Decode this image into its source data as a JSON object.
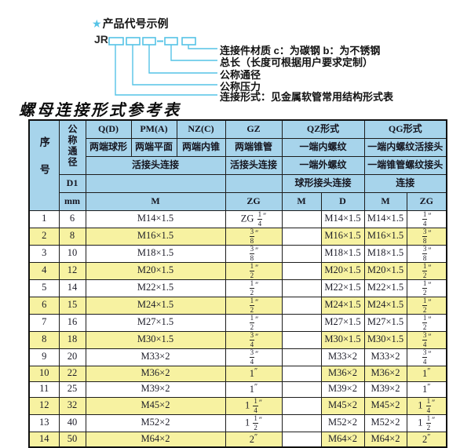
{
  "diagram": {
    "star": "★",
    "heading": "产品代号示例",
    "code_prefix": "JR",
    "labels": [
      "连接件材质  c：为碳钢  b：为不锈钢",
      "总长（长度可根据用户要求定制）",
      "公称通径",
      "公称压力",
      "连接形式：见金属软管常用结构形式表"
    ]
  },
  "table": {
    "title": "螺母连接形式参考表",
    "header": {
      "seq": "序号",
      "nominal_diameter": "公称通径",
      "d1": "D1",
      "unit": "mm",
      "col_q": "Q(D)",
      "col_q_sub": "两端球形",
      "col_pm": "PM(A)",
      "col_pm_sub": "两端平面",
      "col_nz": "NZ(C)",
      "col_nz_sub": "两端内锥",
      "union_left": "活接头连接",
      "m": "M",
      "col_gz": "GZ",
      "col_gz_sub": "两端锥管",
      "col_gz_sub2": "活接头连接",
      "zg": "ZG",
      "col_qz": "QZ形式",
      "col_qz_sub": "一端内螺纹",
      "col_qz_sub2": "一端外螺纹",
      "col_qz_sub3": "球形接头连接",
      "qz_m": "M",
      "qz_d": "D",
      "col_qg": "QG形式",
      "col_qg_sub": "一端内螺纹活接头",
      "col_qg_sub2": "一端锥管螺纹接头",
      "col_qg_sub3": "连接",
      "qg_m": "M",
      "qg_zg": "ZG"
    },
    "rows": [
      [
        "1",
        "6",
        "M14×1.5",
        "ZG 1/4″",
        "",
        "M14×1.5",
        "M14×1.5",
        "1/4″"
      ],
      [
        "2",
        "8",
        "M16×1.5",
        "3/8″",
        "",
        "M16×1.5",
        "M16×1.5",
        "3/8″"
      ],
      [
        "3",
        "10",
        "M18×1.5",
        "3/8″",
        "",
        "M18×1.5",
        "M18×1.5",
        "3/8″"
      ],
      [
        "4",
        "12",
        "M20×1.5",
        "1/2″",
        "",
        "M20×1.5",
        "M20×1.5",
        "1/2″"
      ],
      [
        "5",
        "14",
        "M22×1.5",
        "1/2″",
        "",
        "M22×1.5",
        "M22×1.5",
        "1/2″"
      ],
      [
        "6",
        "15",
        "M24×1.5",
        "1/2″",
        "",
        "M24×1.5",
        "M24×1.5",
        "1/2″"
      ],
      [
        "7",
        "16",
        "M27×1.5",
        "1/2″",
        "",
        "M27×1.5",
        "M27×1.5",
        "1/2″"
      ],
      [
        "8",
        "18",
        "M30×1.5",
        "3/4″",
        "",
        "M30×1.5",
        "M30×1.5",
        "3/4″"
      ],
      [
        "9",
        "20",
        "M33×2",
        "3/4″",
        "",
        "M33×2",
        "M33×2",
        "3/4″"
      ],
      [
        "10",
        "22",
        "M36×2",
        "1″",
        "",
        "M36×2",
        "M36×2",
        "1″"
      ],
      [
        "11",
        "25",
        "M39×2",
        "1″",
        "",
        "M39×2",
        "M39×2",
        "1″"
      ],
      [
        "12",
        "32",
        "M45×2",
        "1 1/4″",
        "",
        "M45×2",
        "M45×2",
        "1 1/4″"
      ],
      [
        "13",
        "40",
        "M52×2",
        "1 1/2″",
        "",
        "M52×2",
        "M52×2",
        "1 1/2″"
      ],
      [
        "14",
        "50",
        "M64×2",
        "2″",
        "",
        "M64×2",
        "M64×2",
        "2″"
      ]
    ]
  },
  "colors": {
    "header_bg": "#a7d4eb",
    "row_alt_bg": "#f7f2a1",
    "accent_line": "#55c3e6",
    "border": "#1d1d1d"
  }
}
